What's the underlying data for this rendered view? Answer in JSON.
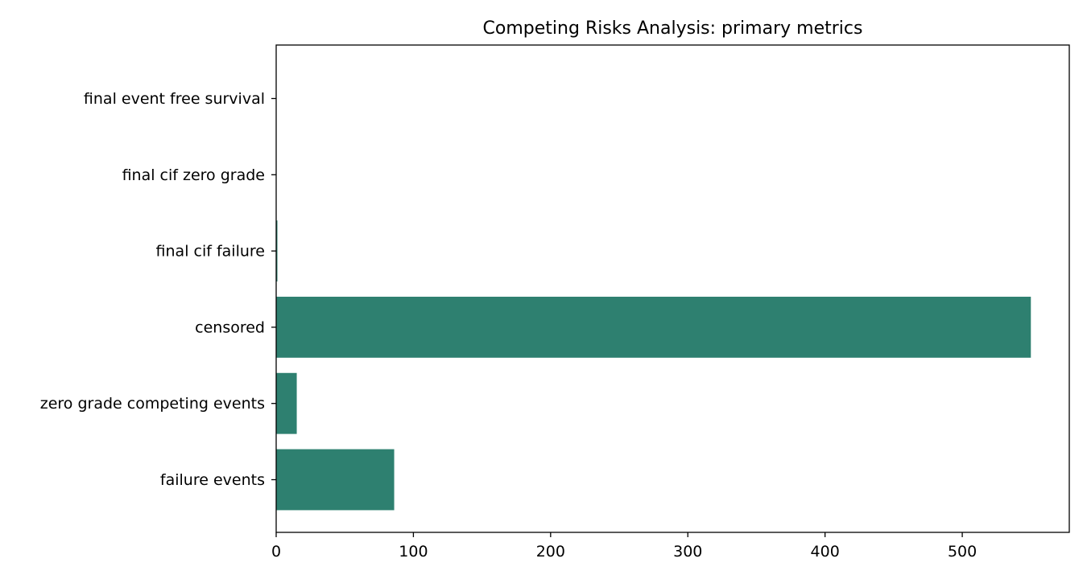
{
  "chart_data": {
    "type": "bar",
    "orientation": "horizontal",
    "title": "Competing Risks Analysis: primary metrics",
    "xlabel": "",
    "ylabel": "",
    "categories": [
      "failure events",
      "zero grade competing events",
      "censored",
      "final cif failure",
      "final cif zero grade",
      "final event free survival"
    ],
    "values": [
      86,
      15,
      550,
      0.9,
      0.05,
      0.05
    ],
    "xlim": [
      0,
      578
    ],
    "xticks": [
      0,
      100,
      200,
      300,
      400,
      500
    ],
    "grid": false,
    "legend": "none",
    "bar_color": "#2e8070"
  }
}
